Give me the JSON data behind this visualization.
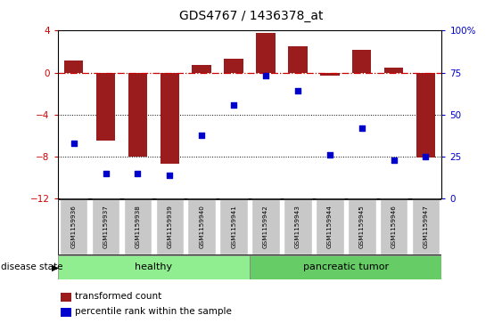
{
  "title": "GDS4767 / 1436378_at",
  "samples": [
    "GSM1159936",
    "GSM1159937",
    "GSM1159938",
    "GSM1159939",
    "GSM1159940",
    "GSM1159941",
    "GSM1159942",
    "GSM1159943",
    "GSM1159944",
    "GSM1159945",
    "GSM1159946",
    "GSM1159947"
  ],
  "bar_values": [
    1.2,
    -6.5,
    -8.0,
    -8.7,
    0.7,
    1.3,
    3.8,
    2.5,
    -0.3,
    2.2,
    0.5,
    -8.1
  ],
  "dot_values": [
    33,
    15,
    15,
    14,
    38,
    56,
    73,
    64,
    26,
    42,
    23,
    25
  ],
  "disease_states": [
    "healthy",
    "healthy",
    "healthy",
    "healthy",
    "healthy",
    "healthy",
    "pancreatic tumor",
    "pancreatic tumor",
    "pancreatic tumor",
    "pancreatic tumor",
    "pancreatic tumor",
    "pancreatic tumor"
  ],
  "bar_color": "#9B1C1C",
  "dot_color": "#0000CC",
  "hline_color": "#CC0000",
  "dotline_color": "black",
  "ylim_left": [
    -12,
    4
  ],
  "ylim_right": [
    0,
    100
  ],
  "yticks_left": [
    -12,
    -8,
    -4,
    0,
    4
  ],
  "yticks_right": [
    0,
    25,
    50,
    75,
    100
  ],
  "healthy_color": "#90EE90",
  "tumor_color": "#66CC66",
  "label_bg_color": "#C8C8C8",
  "legend_bar_label": "transformed count",
  "legend_dot_label": "percentile rank within the sample",
  "disease_label": "disease state"
}
